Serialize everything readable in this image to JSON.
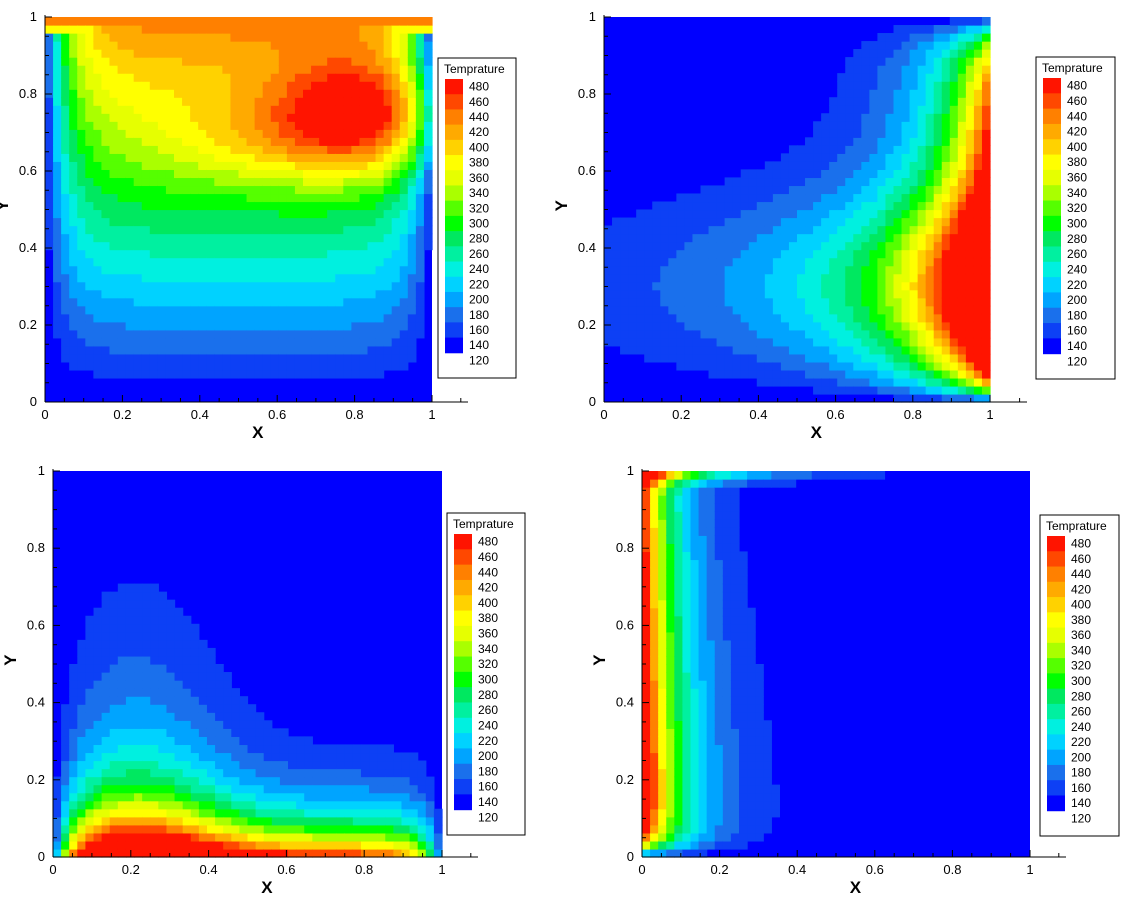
{
  "colorscale": [
    "#0000ff",
    "#0d40f5",
    "#1a70ec",
    "#00a4ff",
    "#00d2ff",
    "#00f0e0",
    "#00f0a0",
    "#00e860",
    "#00ff00",
    "#55ff00",
    "#aaff00",
    "#e6ff00",
    "#ffff00",
    "#ffd200",
    "#ffaa00",
    "#ff8000",
    "#ff4800",
    "#ff1400"
  ],
  "chart_data": [
    {
      "type": "heatmap",
      "panel": "top-left",
      "xlabel": "X",
      "ylabel": "Y",
      "xlim": [
        0,
        1
      ],
      "ylim": [
        0,
        1
      ],
      "xticks": [
        "0",
        "0.2",
        "0.4",
        "0.6",
        "0.8",
        "1"
      ],
      "yticks": [
        "0",
        "0.2",
        "0.4",
        "0.6",
        "0.8",
        "1"
      ],
      "legend": {
        "title": "Temprature",
        "levels": [
          "480",
          "460",
          "440",
          "420",
          "400",
          "380",
          "360",
          "340",
          "320",
          "300",
          "280",
          "260",
          "240",
          "220",
          "200",
          "180",
          "160",
          "140",
          "120"
        ],
        "placement": "right"
      },
      "field": {
        "description_hot_region": "upper-right",
        "max_value": 480,
        "min_value": 120,
        "hot_center": [
          0.85,
          0.8
        ],
        "hot_wall": "top"
      }
    },
    {
      "type": "heatmap",
      "panel": "top-right",
      "xlabel": "X",
      "ylabel": "Y",
      "xlim": [
        0,
        1
      ],
      "ylim": [
        0,
        1
      ],
      "xticks": [
        "0",
        "0.2",
        "0.4",
        "0.6",
        "0.8",
        "1"
      ],
      "yticks": [
        "0",
        "0.2",
        "0.4",
        "0.6",
        "0.8",
        "1"
      ],
      "legend": {
        "title": "Temprature",
        "levels": [
          "480",
          "460",
          "440",
          "420",
          "400",
          "380",
          "360",
          "340",
          "320",
          "300",
          "280",
          "260",
          "240",
          "220",
          "200",
          "180",
          "160",
          "140",
          "120"
        ],
        "placement": "right"
      },
      "field": {
        "max_value": 480,
        "min_value": 120,
        "hot_wall": "right"
      }
    },
    {
      "type": "heatmap",
      "panel": "bottom-left",
      "xlabel": "X",
      "ylabel": "Y",
      "xlim": [
        0,
        1
      ],
      "ylim": [
        0,
        1
      ],
      "xticks": [
        "0",
        "0.2",
        "0.4",
        "0.6",
        "0.8",
        "1"
      ],
      "yticks": [
        "0",
        "0.2",
        "0.4",
        "0.6",
        "0.8",
        "1"
      ],
      "legend": {
        "title": "Temprature",
        "levels": [
          "480",
          "460",
          "440",
          "420",
          "400",
          "380",
          "360",
          "340",
          "320",
          "300",
          "280",
          "260",
          "240",
          "220",
          "200",
          "180",
          "160",
          "140",
          "120"
        ],
        "placement": "right"
      },
      "field": {
        "max_value": 480,
        "min_value": 120,
        "hot_wall": "bottom"
      }
    },
    {
      "type": "heatmap",
      "panel": "bottom-right",
      "xlabel": "X",
      "ylabel": "Y",
      "xlim": [
        0,
        1
      ],
      "ylim": [
        0,
        1
      ],
      "xticks": [
        "0",
        "0.2",
        "0.4",
        "0.6",
        "0.8",
        "1"
      ],
      "yticks": [
        "0",
        "0.2",
        "0.4",
        "0.6",
        "0.8",
        "1"
      ],
      "legend": {
        "title": "Temprature",
        "levels": [
          "480",
          "460",
          "440",
          "420",
          "400",
          "380",
          "360",
          "340",
          "320",
          "300",
          "280",
          "260",
          "240",
          "220",
          "200",
          "180",
          "160",
          "140",
          "120"
        ],
        "placement": "right"
      },
      "field": {
        "max_value": 480,
        "min_value": 120,
        "hot_wall": "left"
      }
    }
  ]
}
